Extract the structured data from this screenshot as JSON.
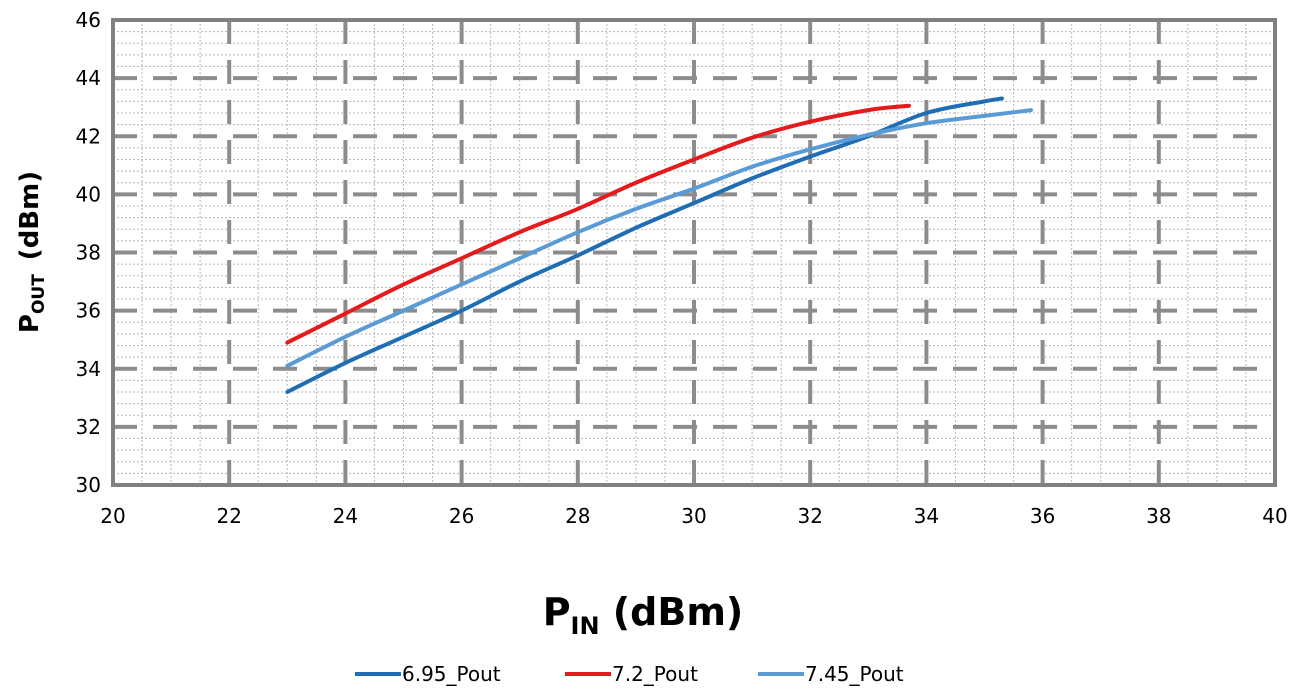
{
  "chart_data": {
    "type": "line",
    "xlabel": {
      "main": "P",
      "sub": "IN",
      "unit": " (dBm)"
    },
    "ylabel": {
      "main": "P",
      "sub": "OUT",
      "unit": "(dBm)"
    },
    "xlim": [
      20,
      40
    ],
    "ylim": [
      30,
      46
    ],
    "x_ticks": [
      20,
      22,
      24,
      26,
      28,
      30,
      32,
      34,
      36,
      38,
      40
    ],
    "y_ticks": [
      30,
      32,
      34,
      36,
      38,
      40,
      42,
      44,
      46
    ],
    "grid": true,
    "legend_position": "bottom",
    "series": [
      {
        "name": "6.95_Pout",
        "color": "#1f6db5",
        "x": [
          23,
          24,
          25,
          26,
          27,
          28,
          29,
          30,
          31,
          32,
          33,
          34,
          35,
          35.3
        ],
        "y": [
          33.2,
          34.2,
          35.1,
          36.0,
          37.0,
          37.9,
          38.85,
          39.7,
          40.55,
          41.3,
          42.0,
          42.8,
          43.2,
          43.3
        ]
      },
      {
        "name": "7.2_Pout",
        "color": "#e41a1c",
        "x": [
          23,
          24,
          25,
          26,
          27,
          28,
          29,
          30,
          31,
          32,
          33,
          33.7
        ],
        "y": [
          34.9,
          35.9,
          36.9,
          37.8,
          38.7,
          39.5,
          40.4,
          41.2,
          41.95,
          42.5,
          42.9,
          43.05
        ]
      },
      {
        "name": "7.45_Pout",
        "color": "#5b9bd5",
        "x": [
          23,
          24,
          25,
          26,
          27,
          28,
          29,
          30,
          31,
          32,
          33,
          34,
          35,
          35.8
        ],
        "y": [
          34.1,
          35.1,
          36.0,
          36.9,
          37.8,
          38.7,
          39.5,
          40.2,
          40.95,
          41.55,
          42.05,
          42.45,
          42.7,
          42.9
        ]
      }
    ]
  }
}
